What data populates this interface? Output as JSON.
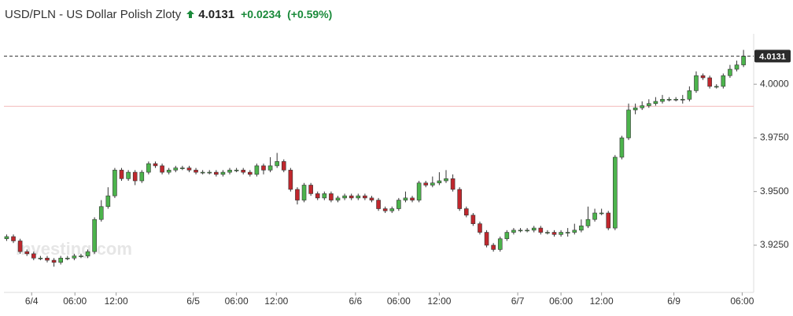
{
  "chart_data": {
    "type": "candlestick",
    "title": "USD/PLN - US Dollar Polish Zloty",
    "last_price": 4.0131,
    "change": "+0.0234",
    "change_percent": "(+0.59%)",
    "previous_close": 3.9897,
    "watermark": "Investing.com",
    "up_color": "#4cb44c",
    "down_color": "#c0272d",
    "open": [
      3.928,
      3.929,
      3.927,
      3.922,
      3.921,
      3.919,
      3.919,
      3.918,
      3.917,
      3.919,
      3.919,
      3.92,
      3.92,
      3.922,
      3.937,
      3.943,
      3.948,
      3.96,
      3.956,
      3.959,
      3.955,
      3.959,
      3.963,
      3.962,
      3.959,
      3.96,
      3.961,
      3.961,
      3.96,
      3.959,
      3.959,
      3.959,
      3.958,
      3.959,
      3.96,
      3.96,
      3.959,
      3.958,
      3.962,
      3.96,
      3.962,
      3.964,
      3.96,
      3.951,
      3.946,
      3.953,
      3.949,
      3.947,
      3.949,
      3.946,
      3.947,
      3.948,
      3.947,
      3.948,
      3.947,
      3.946,
      3.942,
      3.941,
      3.942,
      3.946,
      3.947,
      3.946,
      3.954,
      3.953,
      3.954,
      3.955,
      3.956,
      3.951,
      3.942,
      3.939,
      3.935,
      3.931,
      3.925,
      3.923,
      3.928,
      3.931,
      3.932,
      3.932,
      3.932,
      3.933,
      3.931,
      3.931,
      3.93,
      3.931,
      3.931,
      3.932,
      3.934,
      3.937,
      3.94,
      3.94,
      3.933,
      3.966,
      3.975,
      3.988,
      3.989,
      3.99,
      3.991,
      3.992,
      3.993,
      3.993,
      3.993,
      3.993,
      3.997,
      4.004,
      4.003,
      3.999,
      3.999,
      4.004,
      4.007,
      4.009
    ],
    "high": [
      3.93,
      3.93,
      3.928,
      3.923,
      3.922,
      3.92,
      3.92,
      3.919,
      3.92,
      3.92,
      3.921,
      3.921,
      3.923,
      3.938,
      3.946,
      3.952,
      3.961,
      3.961,
      3.96,
      3.96,
      3.96,
      3.964,
      3.964,
      3.963,
      3.961,
      3.962,
      3.962,
      3.962,
      3.961,
      3.96,
      3.96,
      3.96,
      3.96,
      3.961,
      3.961,
      3.961,
      3.96,
      3.963,
      3.963,
      3.966,
      3.968,
      3.965,
      3.961,
      3.952,
      3.954,
      3.954,
      3.95,
      3.95,
      3.95,
      3.948,
      3.949,
      3.949,
      3.949,
      3.949,
      3.948,
      3.947,
      3.943,
      3.943,
      3.947,
      3.95,
      3.948,
      3.955,
      3.955,
      3.957,
      3.959,
      3.96,
      3.958,
      3.952,
      3.943,
      3.94,
      3.936,
      3.932,
      3.926,
      3.929,
      3.932,
      3.933,
      3.933,
      3.933,
      3.934,
      3.934,
      3.932,
      3.932,
      3.932,
      3.933,
      3.935,
      3.937,
      3.943,
      3.942,
      3.942,
      3.941,
      3.967,
      3.976,
      3.991,
      3.991,
      3.992,
      3.993,
      3.994,
      3.995,
      3.994,
      3.994,
      3.995,
      3.999,
      4.006,
      4.005,
      4.004,
      4.0,
      4.005,
      4.009,
      4.011,
      4.016
    ],
    "low": [
      3.927,
      3.926,
      3.921,
      3.92,
      3.918,
      3.918,
      3.917,
      3.915,
      3.916,
      3.918,
      3.918,
      3.919,
      3.919,
      3.921,
      3.936,
      3.942,
      3.947,
      3.955,
      3.955,
      3.953,
      3.954,
      3.958,
      3.961,
      3.958,
      3.958,
      3.959,
      3.96,
      3.959,
      3.958,
      3.958,
      3.958,
      3.957,
      3.957,
      3.958,
      3.959,
      3.958,
      3.957,
      3.957,
      3.958,
      3.959,
      3.961,
      3.959,
      3.95,
      3.944,
      3.945,
      3.948,
      3.946,
      3.946,
      3.945,
      3.945,
      3.946,
      3.946,
      3.946,
      3.946,
      3.945,
      3.941,
      3.94,
      3.94,
      3.941,
      3.945,
      3.945,
      3.945,
      3.952,
      3.952,
      3.953,
      3.954,
      3.95,
      3.941,
      3.938,
      3.934,
      3.93,
      3.924,
      3.922,
      3.922,
      3.927,
      3.93,
      3.931,
      3.931,
      3.931,
      3.93,
      3.93,
      3.929,
      3.929,
      3.929,
      3.93,
      3.931,
      3.933,
      3.936,
      3.939,
      3.932,
      3.932,
      3.965,
      3.974,
      3.986,
      3.988,
      3.989,
      3.99,
      3.991,
      3.992,
      3.992,
      3.991,
      3.992,
      3.996,
      4.002,
      3.998,
      3.998,
      3.998,
      4.003,
      4.006,
      4.008
    ],
    "close": [
      3.929,
      3.927,
      3.922,
      3.921,
      3.919,
      3.919,
      3.918,
      3.917,
      3.919,
      3.919,
      3.92,
      3.92,
      3.922,
      3.937,
      3.943,
      3.948,
      3.96,
      3.956,
      3.959,
      3.955,
      3.959,
      3.963,
      3.962,
      3.959,
      3.96,
      3.961,
      3.961,
      3.96,
      3.959,
      3.959,
      3.959,
      3.958,
      3.959,
      3.96,
      3.96,
      3.959,
      3.958,
      3.962,
      3.96,
      3.962,
      3.964,
      3.96,
      3.951,
      3.946,
      3.953,
      3.949,
      3.947,
      3.949,
      3.946,
      3.947,
      3.948,
      3.947,
      3.948,
      3.947,
      3.946,
      3.942,
      3.941,
      3.942,
      3.946,
      3.947,
      3.946,
      3.954,
      3.953,
      3.954,
      3.955,
      3.956,
      3.951,
      3.942,
      3.939,
      3.935,
      3.931,
      3.925,
      3.923,
      3.928,
      3.931,
      3.932,
      3.932,
      3.932,
      3.933,
      3.931,
      3.931,
      3.93,
      3.931,
      3.931,
      3.932,
      3.934,
      3.937,
      3.94,
      3.94,
      3.933,
      3.966,
      3.975,
      3.988,
      3.989,
      3.99,
      3.991,
      3.992,
      3.993,
      3.993,
      3.993,
      3.993,
      3.997,
      4.004,
      4.003,
      3.999,
      3.999,
      4.004,
      4.007,
      4.009,
      4.0131
    ],
    "xlim": [
      -0.4,
      110.5
    ],
    "xticks": [
      {
        "value": 3.7,
        "label": "6/4"
      },
      {
        "value": 10.1,
        "label": "06:00"
      },
      {
        "value": 16.2,
        "label": "12:00"
      },
      {
        "value": 27.6,
        "label": "6/5"
      },
      {
        "value": 34.0,
        "label": "06:00"
      },
      {
        "value": 39.9,
        "label": "12:00"
      },
      {
        "value": 51.6,
        "label": "6/6"
      },
      {
        "value": 58.0,
        "label": "06:00"
      },
      {
        "value": 64.0,
        "label": "12:00"
      },
      {
        "value": 75.6,
        "label": "6/7"
      },
      {
        "value": 82.0,
        "label": "06:00"
      },
      {
        "value": 88.0,
        "label": "12:00"
      },
      {
        "value": 98.7,
        "label": "6/9"
      },
      {
        "value": 108.8,
        "label": "06:00"
      }
    ],
    "ylim": [
      3.903,
      4.0235
    ],
    "yticks": [
      {
        "value": 3.925,
        "label": "3.9250"
      },
      {
        "value": 3.95,
        "label": "3.9500"
      },
      {
        "value": 3.975,
        "label": "3.9750"
      },
      {
        "value": 4,
        "label": "4.0000"
      }
    ]
  }
}
